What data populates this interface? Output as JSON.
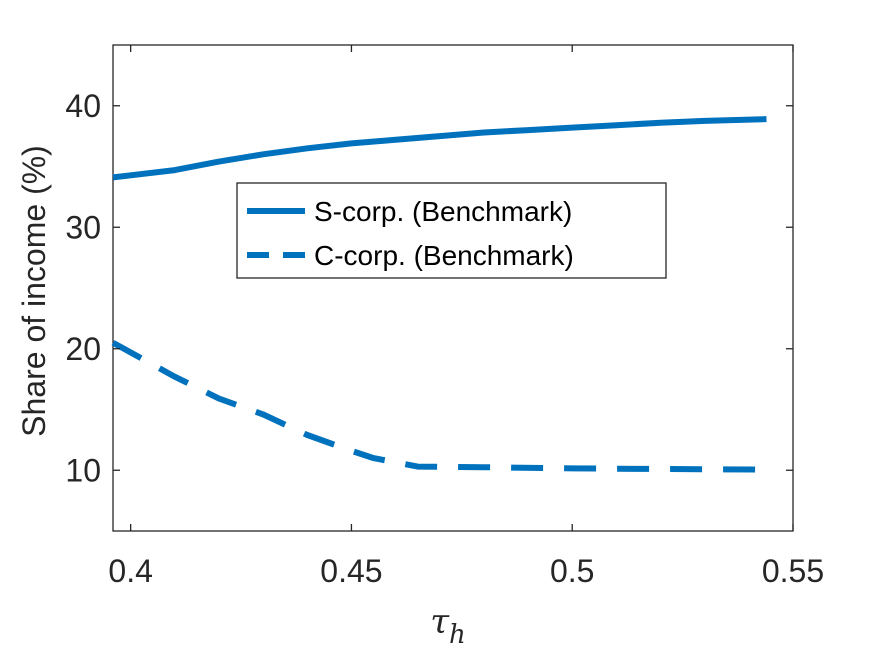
{
  "chart_data": {
    "type": "line",
    "title": "",
    "xlabel": "τ",
    "xlabel_subscript": "h",
    "ylabel": "Share of income (%)",
    "xlim": [
      0.396,
      0.55
    ],
    "ylim": [
      5,
      45
    ],
    "xticks": [
      0.4,
      0.45,
      0.5,
      0.55
    ],
    "xtick_labels": [
      "0.4",
      "0.45",
      "0.5",
      "0.55"
    ],
    "yticks": [
      10,
      20,
      30,
      40
    ],
    "ytick_labels": [
      "10",
      "20",
      "30",
      "40"
    ],
    "grid": false,
    "legend_placement": "center",
    "colors": {
      "series": "#0072BD",
      "axis": "#262626"
    },
    "series": [
      {
        "name": "S-corp. (Benchmark)",
        "style": "solid",
        "x": [
          0.396,
          0.41,
          0.42,
          0.43,
          0.44,
          0.45,
          0.46,
          0.47,
          0.48,
          0.49,
          0.5,
          0.51,
          0.52,
          0.53,
          0.544
        ],
        "y": [
          34.1,
          34.7,
          35.4,
          36.0,
          36.5,
          36.9,
          37.2,
          37.5,
          37.8,
          38.0,
          38.2,
          38.4,
          38.6,
          38.75,
          38.9
        ]
      },
      {
        "name": "C-corp. (Benchmark)",
        "style": "dashed",
        "x": [
          0.396,
          0.41,
          0.42,
          0.43,
          0.44,
          0.45,
          0.455,
          0.465,
          0.48,
          0.5,
          0.52,
          0.544
        ],
        "y": [
          20.5,
          17.7,
          15.9,
          14.6,
          12.9,
          11.6,
          11.0,
          10.3,
          10.25,
          10.15,
          10.1,
          10.05
        ]
      }
    ]
  }
}
